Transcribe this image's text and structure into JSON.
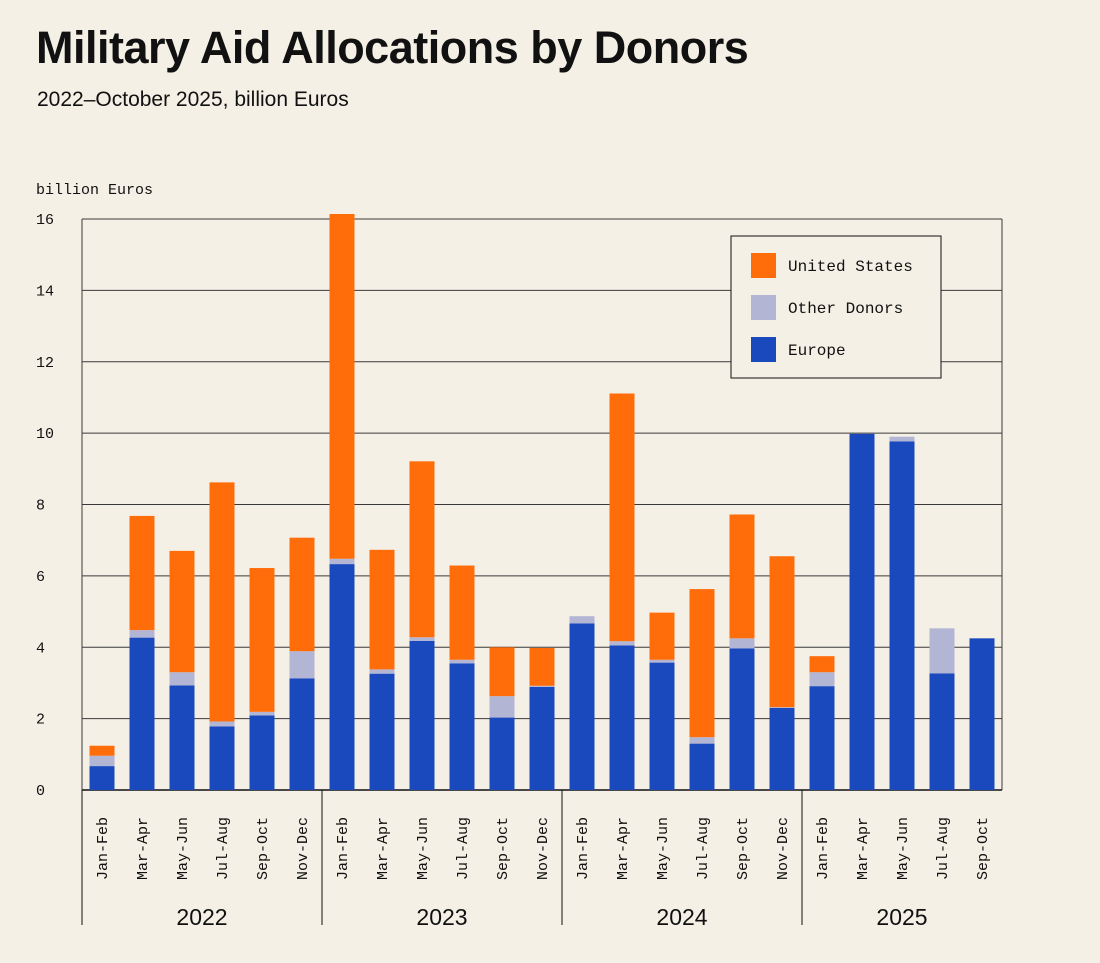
{
  "header": {
    "title": "Military Aid Allocations by Donors",
    "subtitle": "2022–October 2025, billion Euros"
  },
  "colors": {
    "us": "#ff6d0a",
    "other": "#b3b5d5",
    "europe": "#1a49bd",
    "grid": "#3a3a3a",
    "background": "#f5f0e6"
  },
  "chart_data": {
    "type": "bar",
    "stacked": true,
    "title": "Military Aid Allocations by Donors",
    "subtitle": "2022–October 2025, billion Euros",
    "ylabel": "billion Euros",
    "xlabel": "",
    "ylim": [
      0,
      16
    ],
    "yticks": [
      0,
      2,
      4,
      6,
      8,
      10,
      12,
      14,
      16
    ],
    "grid": true,
    "legend_position": "top-right",
    "categories": [
      "Jan-Feb",
      "Mar-Apr",
      "May-Jun",
      "Jul-Aug",
      "Sep-Oct",
      "Nov-Dec",
      "Jan-Feb",
      "Mar-Apr",
      "May-Jun",
      "Jul-Aug",
      "Sep-Oct",
      "Nov-Dec",
      "Jan-Feb",
      "Mar-Apr",
      "May-Jun",
      "Jul-Aug",
      "Sep-Oct",
      "Nov-Dec",
      "Jan-Feb",
      "Mar-Apr",
      "May-Jun",
      "Jul-Aug",
      "Sep-Oct"
    ],
    "year_groups": [
      {
        "label": "2022",
        "count": 6
      },
      {
        "label": "2023",
        "count": 6
      },
      {
        "label": "2024",
        "count": 6
      },
      {
        "label": "2025",
        "count": 5
      }
    ],
    "series": [
      {
        "name": "Europe",
        "key": "europe",
        "values": [
          0.67,
          4.27,
          2.93,
          1.78,
          2.09,
          3.13,
          6.33,
          3.26,
          4.18,
          3.55,
          2.03,
          2.89,
          4.67,
          4.05,
          3.57,
          1.3,
          3.97,
          2.3,
          2.91,
          9.98,
          9.77,
          3.27,
          4.25
        ]
      },
      {
        "name": "Other Donors",
        "key": "other",
        "values": [
          0.29,
          0.21,
          0.37,
          0.14,
          0.1,
          0.76,
          0.15,
          0.12,
          0.1,
          0.1,
          0.6,
          0.03,
          0.2,
          0.12,
          0.08,
          0.18,
          0.28,
          0.02,
          0.39,
          0.0,
          0.13,
          1.26,
          0.0
        ]
      },
      {
        "name": "United States",
        "key": "us",
        "values": [
          0.28,
          3.2,
          3.4,
          6.7,
          4.03,
          3.18,
          9.66,
          3.35,
          4.93,
          2.64,
          1.37,
          1.06,
          0.0,
          6.94,
          1.32,
          4.15,
          3.47,
          4.23,
          0.45,
          0.0,
          0.0,
          0.0,
          0.0
        ]
      }
    ],
    "legend": [
      {
        "label": "United States",
        "key": "us"
      },
      {
        "label": "Other Donors",
        "key": "other"
      },
      {
        "label": "Europe",
        "key": "europe"
      }
    ]
  }
}
